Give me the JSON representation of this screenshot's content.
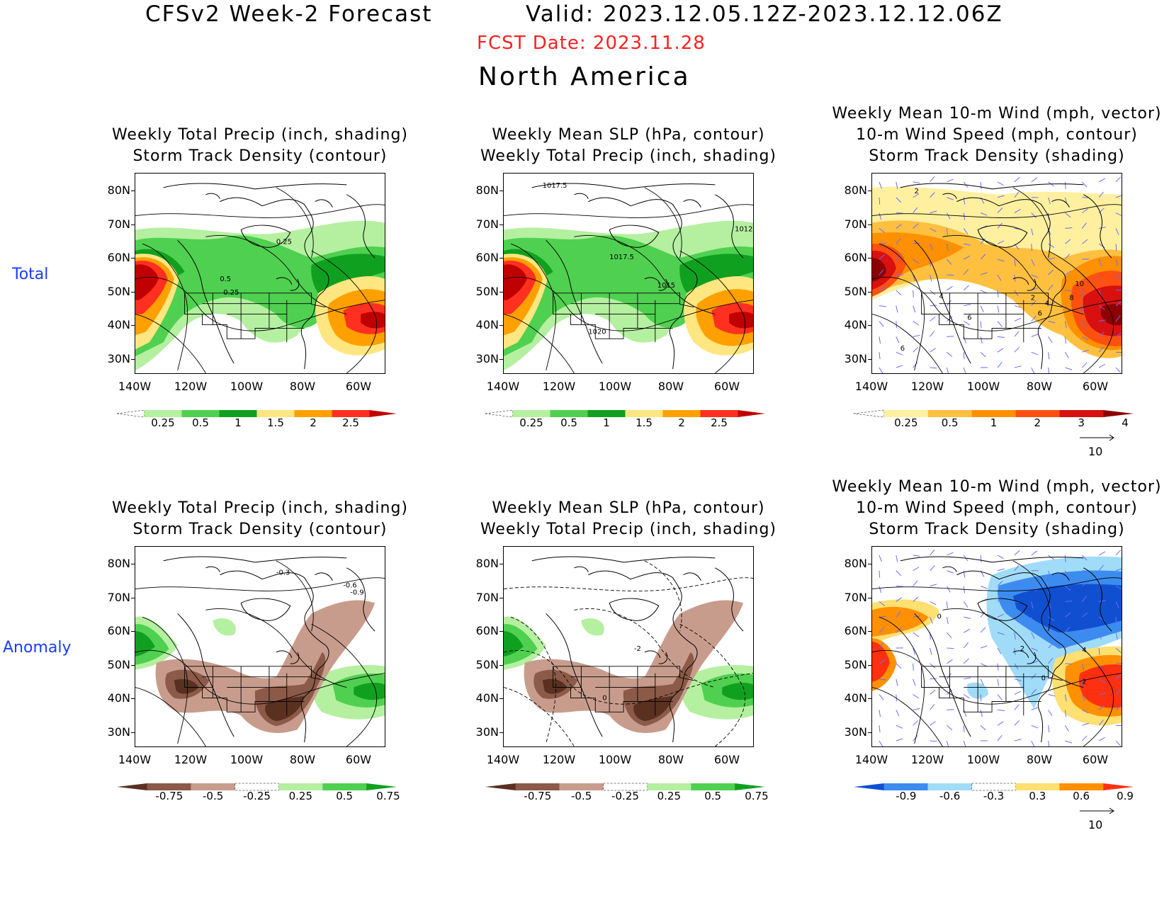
{
  "header": {
    "title_left": "CFSv2 Week-2 Forecast",
    "title_right": "Valid: 2023.12.05.12Z-2023.12.12.06Z",
    "fcst_date": "FCST Date: 2023.11.28",
    "region": "North America",
    "fcst_color": "#ff2020"
  },
  "rows": [
    {
      "label": "Total",
      "color": "#1a3cff"
    },
    {
      "label": "Anomaly",
      "color": "#1a3cff"
    }
  ],
  "axes": {
    "lat_labels": [
      "80N",
      "70N",
      "60N",
      "50N",
      "40N",
      "30N"
    ],
    "lon_labels": [
      "140W",
      "120W",
      "100W",
      "80W",
      "60W"
    ]
  },
  "panels": [
    {
      "id": "total-precip-storm",
      "title_lines": [
        "Weekly Total Precip (inch, shading)",
        "Storm Track Density (contour)"
      ],
      "contour_labels": [
        "0.25",
        "0.5",
        "0.25"
      ],
      "colorbar": {
        "labels": [
          "0.25",
          "0.5",
          "1",
          "1.5",
          "2",
          "2.5"
        ],
        "colors": [
          "#ffffff",
          "#b4f0a0",
          "#50d050",
          "#10a020",
          "#ffe680",
          "#ffa000",
          "#ff3020",
          "#c00000"
        ]
      },
      "scheme": "precip"
    },
    {
      "id": "total-slp-precip",
      "title_lines": [
        "Weekly Mean SLP (hPa, contour)",
        "Weekly Total Precip (inch, shading)"
      ],
      "contour_labels": [
        "1017.5",
        "1017.5",
        "1015",
        "1020",
        "1012"
      ],
      "colorbar": {
        "labels": [
          "0.25",
          "0.5",
          "1",
          "1.5",
          "2",
          "2.5"
        ],
        "colors": [
          "#ffffff",
          "#b4f0a0",
          "#50d050",
          "#10a020",
          "#ffe680",
          "#ffa000",
          "#ff3020",
          "#c00000"
        ]
      },
      "scheme": "precip"
    },
    {
      "id": "total-wind-storm",
      "title_lines": [
        "Weekly Mean 10-m Wind (mph, vector)",
        "10-m Wind Speed (mph, contour)",
        "Storm Track Density (shading)"
      ],
      "contour_labels": [
        "2",
        "4",
        "6",
        "2",
        "4",
        "6",
        "10",
        "8",
        "6"
      ],
      "colorbar": {
        "labels": [
          "0.25",
          "0.5",
          "1",
          "2",
          "3",
          "4"
        ],
        "colors": [
          "#ffffff",
          "#fff0a0",
          "#ffc040",
          "#ff9000",
          "#ff5010",
          "#d81010",
          "#8c0000"
        ]
      },
      "vector_ref": "10",
      "scheme": "storm"
    },
    {
      "id": "anom-precip-storm",
      "title_lines": [
        "Weekly Total Precip (inch, shading)",
        "Storm Track Density (contour)"
      ],
      "contour_labels": [
        "-0.3",
        "-0.6",
        "-0.9"
      ],
      "colorbar": {
        "labels": [
          "-0.75",
          "-0.5",
          "-0.25",
          "0.25",
          "0.5",
          "0.75"
        ],
        "colors": [
          "#5a3020",
          "#8c5a48",
          "#c89c8c",
          "#ffffff",
          "#b4f0a0",
          "#50d050",
          "#10a020"
        ]
      },
      "scheme": "anom"
    },
    {
      "id": "anom-slp-precip",
      "title_lines": [
        "Weekly Mean SLP (hPa, contour)",
        "Weekly Total Precip (inch, shading)"
      ],
      "contour_labels": [
        "-2",
        "0"
      ],
      "colorbar": {
        "labels": [
          "-0.75",
          "-0.5",
          "-0.25",
          "0.25",
          "0.5",
          "0.75"
        ],
        "colors": [
          "#5a3020",
          "#8c5a48",
          "#c89c8c",
          "#ffffff",
          "#b4f0a0",
          "#50d050",
          "#10a020"
        ]
      },
      "scheme": "anom"
    },
    {
      "id": "anom-wind-storm",
      "title_lines": [
        "Weekly Mean 10-m Wind (mph, vector)",
        "10-m Wind Speed (mph, contour)",
        "Storm Track Density (shading)"
      ],
      "contour_labels": [
        "0",
        "2",
        "0",
        "4",
        "2"
      ],
      "colorbar": {
        "labels": [
          "-0.9",
          "-0.6",
          "-0.3",
          "0.3",
          "0.6",
          "0.9"
        ],
        "colors": [
          "#1050d0",
          "#3c8cf0",
          "#a0dcf8",
          "#ffffff",
          "#ffe070",
          "#ff9000",
          "#ff3010"
        ]
      },
      "vector_ref": "10",
      "scheme": "stormanom"
    }
  ]
}
